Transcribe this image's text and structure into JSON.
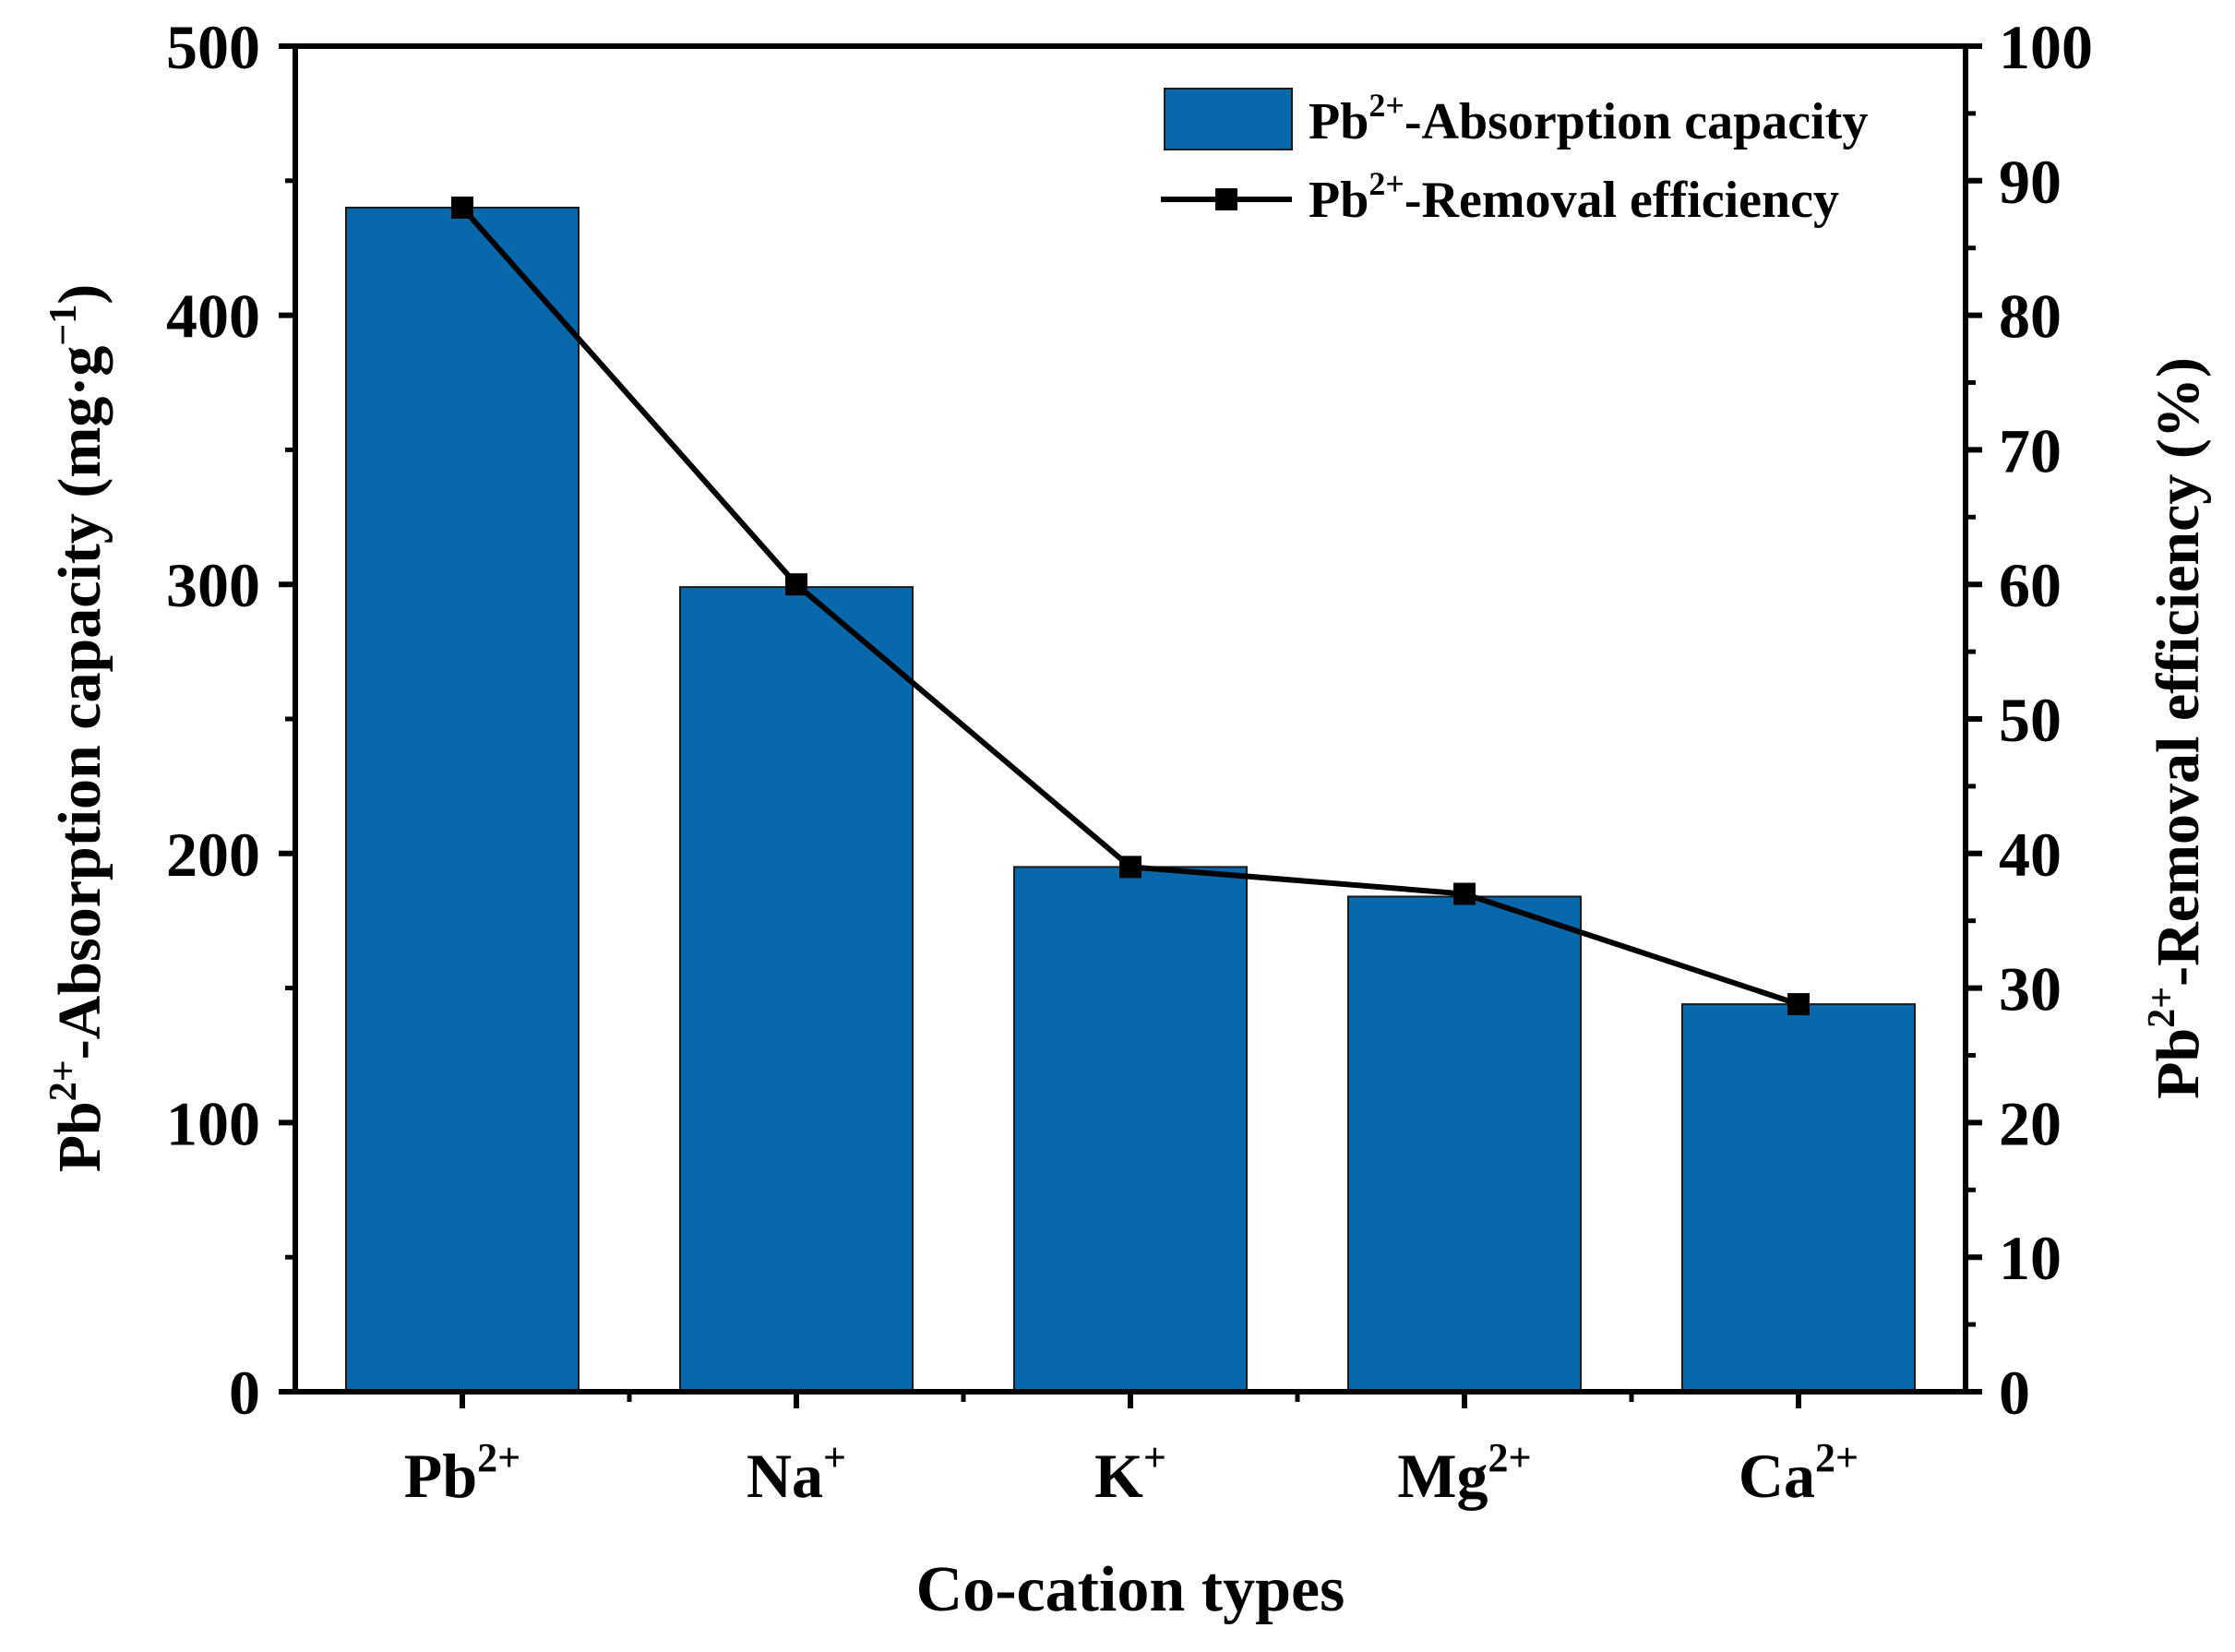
{
  "chart_data": {
    "type": "bar",
    "categories": [
      {
        "base": "Pb",
        "sup": "2+"
      },
      {
        "base": "Na",
        "sup": "+"
      },
      {
        "base": "K",
        "sup": "+"
      },
      {
        "base": "Mg",
        "sup": "2+"
      },
      {
        "base": "Ca",
        "sup": "2+"
      }
    ],
    "series": [
      {
        "name": "Pb2+-Absorption capacity",
        "legend": {
          "pre": "Pb",
          "sup": "2+",
          "post": "-Absorption capacity"
        },
        "kind": "bar",
        "axis": "left",
        "color": "#0868ac",
        "values": [
          440,
          299,
          195,
          184,
          144
        ]
      },
      {
        "name": "Pb2+-Removal efficiency",
        "legend": {
          "pre": "Pb",
          "sup": "2+",
          "post": "-Removal efficiency"
        },
        "kind": "line",
        "axis": "right",
        "color": "#000000",
        "marker": "square",
        "values": [
          88,
          60,
          39,
          37,
          28.8
        ]
      }
    ],
    "xlabel": "Co-cation types",
    "ylabel_left": {
      "pre": "Pb",
      "sup": "2+",
      "mid": "-Absorption capacity (mg·g",
      "sup2": "−1",
      "post": ")"
    },
    "ylabel_right": {
      "pre": "Pb",
      "sup": "2+",
      "post": "-Removal efficiency (%)"
    },
    "ylim_left": [
      0,
      500
    ],
    "yticks_left": [
      0,
      100,
      200,
      300,
      400,
      500
    ],
    "ylim_right": [
      0,
      100
    ],
    "yticks_right": [
      0,
      10,
      20,
      30,
      40,
      50,
      60,
      70,
      80,
      90,
      100
    ],
    "grid": false,
    "legend_position": "top-right"
  }
}
